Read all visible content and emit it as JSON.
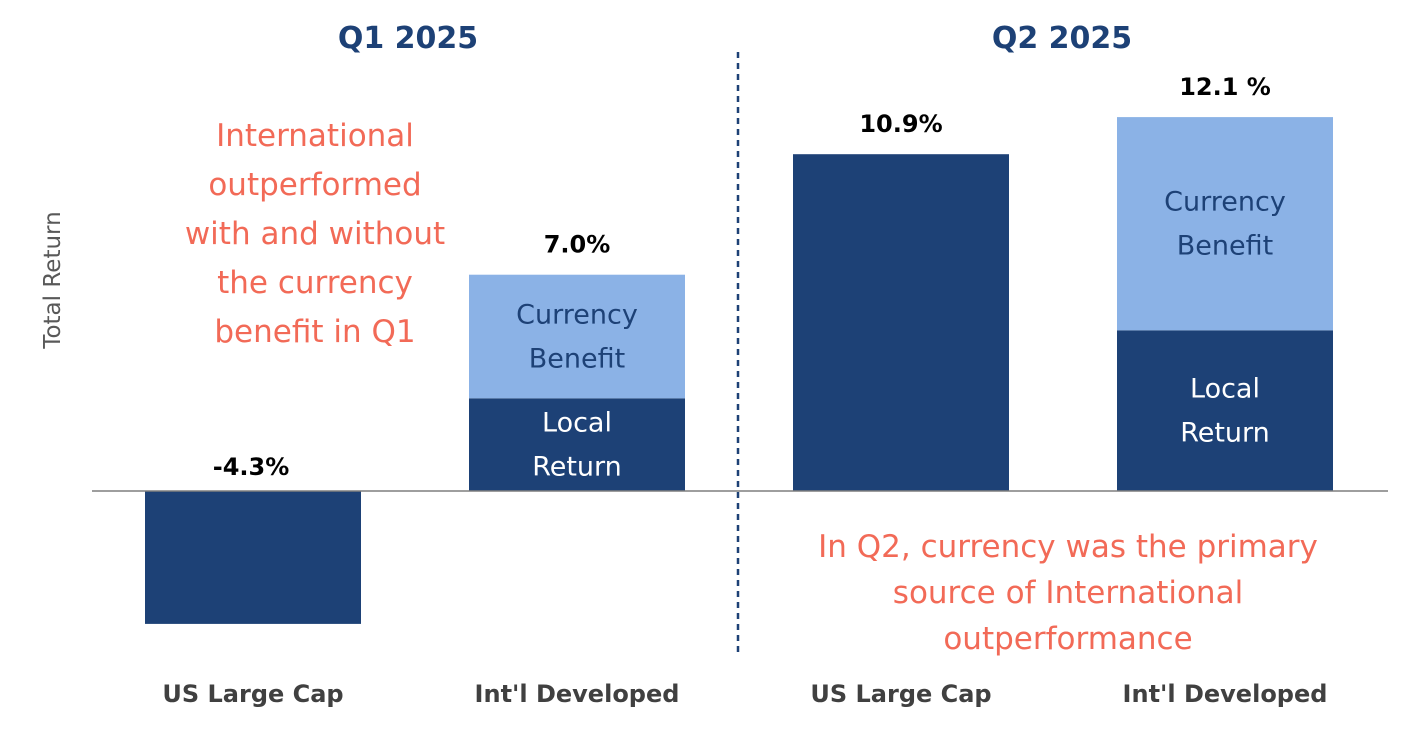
{
  "chart_data": {
    "type": "bar",
    "stacked": true,
    "ylabel": "Total Return",
    "unit": "%",
    "ylim": [
      -5,
      13.5
    ],
    "grid": false,
    "colors": {
      "local_return": "#1d4176",
      "currency_benefit": "#8bb2e6",
      "panel_title": "#1d4176",
      "annotation": "#f26a57",
      "ylabel": "#595959",
      "category_label": "#404040",
      "divider": "#1d4176",
      "axis": "#7f7f7f"
    },
    "panels": [
      {
        "title": "Q1 2025",
        "bars": [
          {
            "category": "US Large Cap",
            "total": -4.3,
            "total_label": "-4.3%",
            "segments": [
              {
                "kind": "local_return",
                "value": -4.3,
                "label": ""
              }
            ]
          },
          {
            "category": "Int'l Developed",
            "total": 7.0,
            "total_label": "7.0%",
            "segments": [
              {
                "kind": "local_return",
                "value": 3.0,
                "label": [
                  "Local",
                  "Return"
                ]
              },
              {
                "kind": "currency_benefit",
                "value": 4.0,
                "label": [
                  "Currency",
                  "Benefit"
                ]
              }
            ]
          }
        ],
        "annotation": [
          "International",
          "outperformed",
          "with and without",
          "the currency",
          "benefit in Q1"
        ]
      },
      {
        "title": "Q2 2025",
        "bars": [
          {
            "category": "US Large Cap",
            "total": 10.9,
            "total_label": "10.9%",
            "segments": [
              {
                "kind": "local_return",
                "value": 10.9,
                "label": ""
              }
            ]
          },
          {
            "category": "Int'l Developed",
            "total": 12.1,
            "total_label": "12.1 %",
            "segments": [
              {
                "kind": "local_return",
                "value": 5.2,
                "label": [
                  "Local",
                  "Return"
                ]
              },
              {
                "kind": "currency_benefit",
                "value": 6.9,
                "label": [
                  "Currency",
                  "Benefit"
                ]
              }
            ]
          }
        ],
        "annotation": [
          "In Q2, currency was the primary",
          "source of International",
          "outperformance"
        ]
      }
    ]
  }
}
